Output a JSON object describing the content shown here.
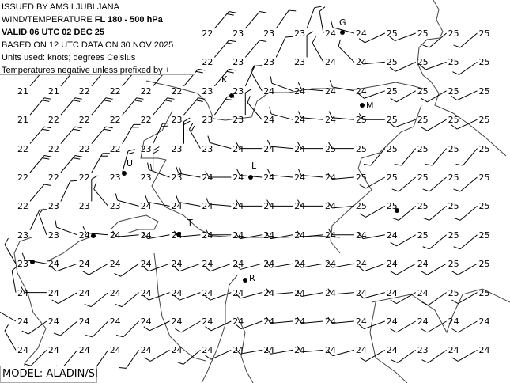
{
  "header": {
    "line1": "ISSUED BY AMS LJUBLJANA",
    "line2_prefix": "WIND/TEMPERATURE ",
    "line2_bold": "FL 180 - 500 hPa",
    "line3": "VALID 06 UTC 02 DEC 25",
    "line4": "BASED ON 12 UTC DATA ON 30 NOV 2025",
    "line5": "Units used: knots; degrees Celsius",
    "line6": "Temperatures negative unless prefixed by +"
  },
  "model_label": "MODEL: ALADIN/SI",
  "cities": {
    "G": "G",
    "K": "K",
    "M": "M",
    "U": "U",
    "L": "L",
    "T": "T",
    "R": "R"
  },
  "colors": {
    "ink": "#000000",
    "coast": "#444444"
  },
  "temperatures": [
    [
      null,
      null,
      null,
      null,
      null,
      null,
      22,
      23,
      23,
      23,
      24,
      24,
      25,
      25,
      25,
      25
    ],
    [
      null,
      null,
      null,
      null,
      null,
      null,
      22,
      23,
      23,
      23,
      24,
      24,
      25,
      25,
      25,
      25
    ],
    [
      21,
      21,
      22,
      22,
      22,
      22,
      23,
      23,
      24,
      24,
      24,
      24,
      25,
      25,
      25,
      25
    ],
    [
      21,
      22,
      22,
      22,
      22,
      23,
      23,
      23,
      24,
      24,
      24,
      25,
      25,
      25,
      25,
      25
    ],
    [
      22,
      22,
      22,
      22,
      23,
      23,
      23,
      24,
      24,
      24,
      25,
      25,
      25,
      25,
      25,
      25
    ],
    [
      22,
      22,
      22,
      23,
      23,
      23,
      24,
      24,
      24,
      24,
      24,
      25,
      25,
      25,
      25,
      25
    ],
    [
      22,
      23,
      23,
      23,
      24,
      24,
      24,
      24,
      24,
      24,
      24,
      25,
      25,
      25,
      25,
      25
    ],
    [
      23,
      23,
      24,
      24,
      24,
      24,
      24,
      24,
      24,
      24,
      24,
      24,
      24,
      25,
      25,
      25
    ],
    [
      23,
      24,
      24,
      24,
      24,
      24,
      24,
      24,
      24,
      24,
      24,
      24,
      24,
      24,
      25,
      25
    ],
    [
      24,
      24,
      24,
      24,
      24,
      24,
      24,
      24,
      24,
      24,
      24,
      24,
      24,
      24,
      25,
      25
    ],
    [
      24,
      24,
      24,
      24,
      24,
      24,
      24,
      24,
      24,
      24,
      24,
      24,
      24,
      24,
      24,
      24
    ],
    [
      24,
      24,
      24,
      24,
      24,
      24,
      24,
      24,
      24,
      24,
      24,
      24,
      24,
      23,
      24,
      24
    ]
  ],
  "wind_from_deg": [
    [
      null,
      null,
      null,
      null,
      null,
      null,
      40,
      40,
      35,
      20,
      350,
      285,
      245,
      250,
      230,
      230
    ],
    [
      null,
      null,
      null,
      null,
      null,
      null,
      40,
      40,
      25,
      0,
      330,
      315,
      265,
      245,
      250,
      235
    ],
    [
      40,
      40,
      40,
      40,
      40,
      40,
      40,
      25,
      330,
      290,
      275,
      280,
      250,
      240,
      240,
      245
    ],
    [
      40,
      40,
      40,
      40,
      40,
      40,
      35,
      0,
      320,
      285,
      275,
      275,
      270,
      250,
      240,
      245
    ],
    [
      40,
      40,
      40,
      30,
      25,
      0,
      330,
      285,
      270,
      275,
      270,
      270,
      220,
      220,
      220,
      220
    ],
    [
      40,
      40,
      30,
      15,
      0,
      290,
      280,
      270,
      275,
      275,
      275,
      265,
      240,
      230,
      230,
      230
    ],
    [
      40,
      25,
      0,
      320,
      285,
      280,
      280,
      275,
      270,
      270,
      270,
      265,
      240,
      230,
      230,
      230
    ],
    [
      25,
      340,
      290,
      275,
      265,
      260,
      265,
      270,
      260,
      260,
      265,
      270,
      260,
      240,
      230,
      230
    ],
    [
      330,
      280,
      250,
      240,
      235,
      250,
      250,
      250,
      255,
      260,
      260,
      260,
      250,
      240,
      240,
      240
    ],
    [
      350,
      270,
      240,
      230,
      230,
      250,
      250,
      250,
      255,
      265,
      260,
      265,
      255,
      240,
      235,
      240
    ],
    [
      300,
      235,
      230,
      225,
      225,
      245,
      240,
      245,
      250,
      265,
      265,
      265,
      250,
      240,
      240,
      240
    ],
    [
      330,
      225,
      220,
      215,
      215,
      240,
      230,
      245,
      260,
      260,
      265,
      255,
      240,
      235,
      235,
      240
    ]
  ]
}
